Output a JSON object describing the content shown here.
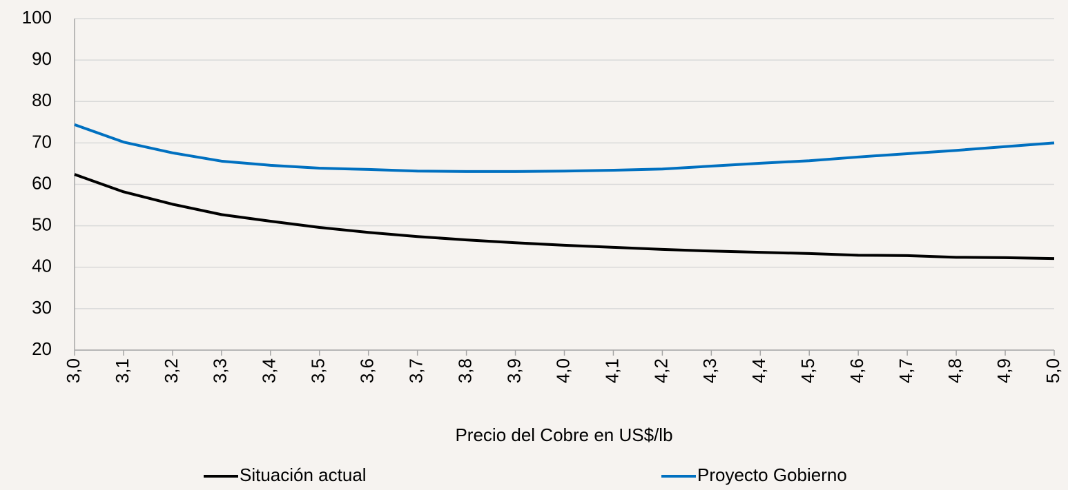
{
  "chart_data": {
    "type": "line",
    "x_label": "Precio del Cobre en US$/lb",
    "categories": [
      "3,0",
      "3,1",
      "3,2",
      "3,3",
      "3,4",
      "3,5",
      "3,6",
      "3,7",
      "3,8",
      "3,9",
      "4,0",
      "4,1",
      "4,2",
      "4,3",
      "4,4",
      "4,5",
      "4,6",
      "4,7",
      "4,8",
      "4,9",
      "5,0"
    ],
    "series": [
      {
        "name": "Situación actual",
        "color": "#000000",
        "values": [
          62.4,
          58.2,
          55.2,
          52.7,
          51.1,
          49.6,
          48.4,
          47.4,
          46.6,
          45.9,
          45.3,
          44.8,
          44.3,
          43.9,
          43.6,
          43.3,
          42.9,
          42.8,
          42.4,
          42.3,
          42.1
        ]
      },
      {
        "name": "Proyecto Gobierno",
        "color": "#0070c0",
        "values": [
          74.4,
          70.2,
          67.6,
          65.6,
          64.6,
          63.9,
          63.6,
          63.2,
          63.1,
          63.1,
          63.2,
          63.4,
          63.7,
          64.4,
          65.1,
          65.7,
          66.6,
          67.4,
          68.2,
          69.1,
          70.0
        ]
      }
    ],
    "ylim": [
      20,
      100
    ],
    "yticks": [
      20,
      30,
      40,
      50,
      60,
      70,
      80,
      90,
      100
    ],
    "grid": true,
    "legend": "bottom"
  }
}
